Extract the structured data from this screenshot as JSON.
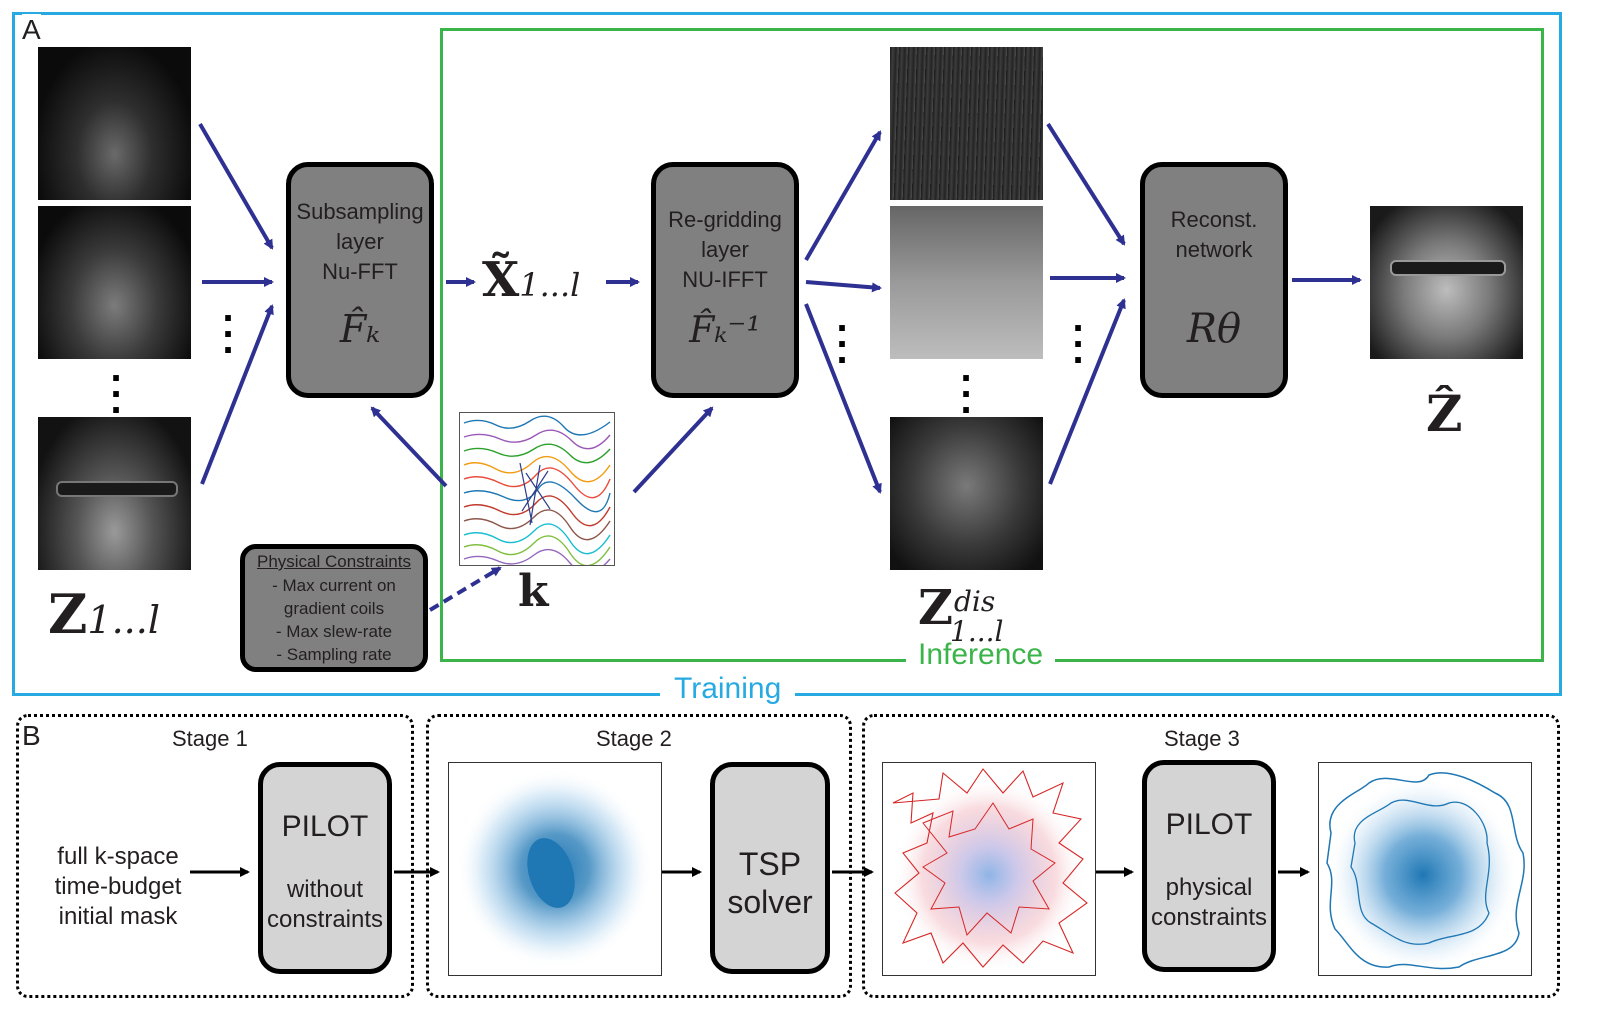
{
  "panel_a": {
    "letter": "A",
    "training_label": "Training",
    "inference_label": "Inference",
    "subsampling": {
      "lines": [
        "Subsampling",
        "layer",
        "Nu-FFT"
      ],
      "math": "F̂ₖ"
    },
    "regridding": {
      "lines": [
        "Re-gridding",
        "layer",
        "NU-IFFT"
      ],
      "math": "F̂ₖ⁻¹"
    },
    "recon": {
      "lines": [
        "Reconst.",
        "network"
      ],
      "math": "Rθ"
    },
    "x_tilde": "X̃",
    "x_sub": "1...l",
    "z_input": "Z",
    "z_input_sub": "1...l",
    "z_dis": "Z",
    "z_dis_sup": "dis",
    "z_dis_sub": "1...l",
    "z_hat": "Ẑ",
    "k_label": "k",
    "constraints": {
      "title": "Physical Constraints",
      "items": [
        "- Max current on",
        "gradient coils",
        "- Max slew-rate",
        "- Sampling rate"
      ]
    },
    "colors": {
      "training": "#27a9e1",
      "inference": "#3bb44a",
      "arrow": "#2e3192"
    }
  },
  "panel_b": {
    "letter": "B",
    "stage1": {
      "title": "Stage 1",
      "input_lines": [
        "full k-space",
        "time-budget",
        "initial mask"
      ],
      "box_title": "PILOT",
      "box_lines": [
        "without",
        "constraints"
      ]
    },
    "stage2": {
      "title": "Stage 2",
      "box_lines": [
        "TSP",
        "solver"
      ]
    },
    "stage3": {
      "title": "Stage 3",
      "box_title": "PILOT",
      "box_lines": [
        "physical",
        "constraints"
      ]
    }
  }
}
